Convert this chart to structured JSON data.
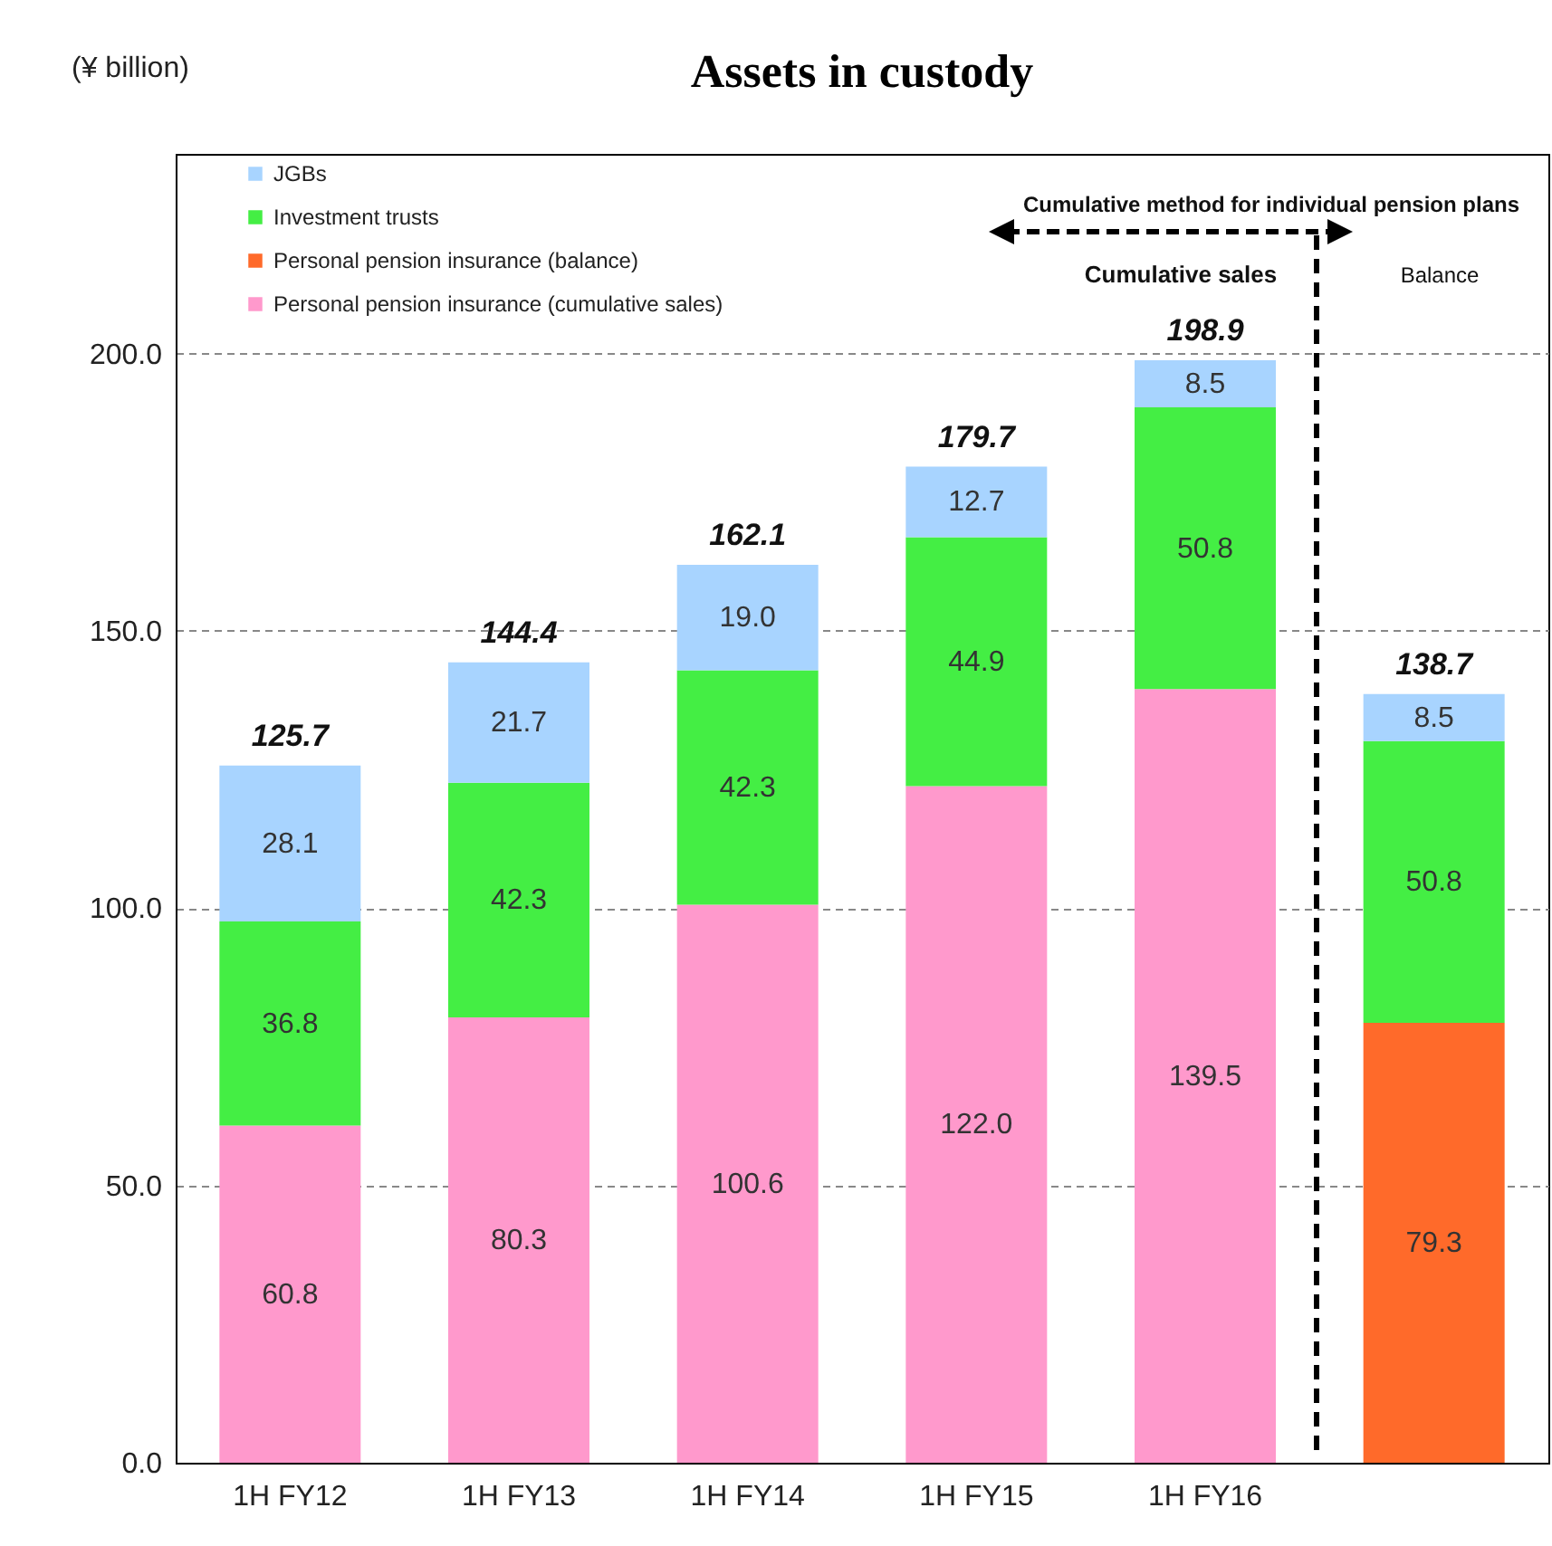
{
  "chart_data": {
    "type": "bar",
    "title": "Assets in custody",
    "ylabel": "(¥ billion)",
    "stacked": true,
    "grid": "y",
    "legend": "top left",
    "categories": [
      "1H FY12",
      "1H FY13",
      "1H FY14",
      "1H FY15",
      "1H FY16",
      null
    ],
    "series": [
      {
        "name": "Personal pension insurance (cumulative sales)",
        "color": "#ff99cc",
        "values": [
          60.8,
          80.3,
          100.6,
          122.0,
          139.5,
          null
        ],
        "value_labels": [
          "60.8",
          "80.3",
          "100.6",
          "122.0",
          "139.5",
          null
        ]
      },
      {
        "name": "Personal pension insurance (balance)",
        "color": "#ff6a2a",
        "values": [
          null,
          null,
          null,
          null,
          null,
          79.3
        ],
        "value_labels": [
          null,
          null,
          null,
          null,
          null,
          "79.3"
        ]
      },
      {
        "name": "Investment trusts",
        "color": "#44ee44",
        "values": [
          36.8,
          42.3,
          42.3,
          44.9,
          50.8,
          50.8
        ],
        "value_labels": [
          "36.8",
          "42.3",
          "42.3",
          "44.9",
          "50.8",
          "50.8"
        ]
      },
      {
        "name": "JGBs",
        "color": "#a8d4ff",
        "values": [
          28.1,
          21.7,
          19.0,
          12.7,
          8.5,
          8.5
        ],
        "value_labels": [
          "28.1",
          "21.7",
          "19.0",
          "12.7",
          "8.5",
          "8.5"
        ]
      }
    ],
    "totals": [
      "125.7",
      "144.4",
      "162.1",
      "179.7",
      "198.9",
      "138.7"
    ],
    "ylim": [
      0,
      236
    ],
    "yticks": [
      {
        "value": 0,
        "label": "0.0"
      },
      {
        "value": 50,
        "label": "50.0"
      },
      {
        "value": 100,
        "label": "100.0"
      },
      {
        "value": 150,
        "label": "150.0"
      },
      {
        "value": 200,
        "label": "200.0"
      }
    ],
    "annotations": [
      "Cumulative method for individual pension plans",
      "Cumulative sales",
      "Balance"
    ]
  }
}
